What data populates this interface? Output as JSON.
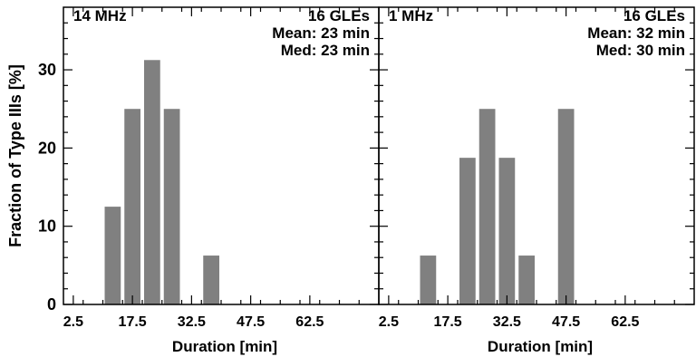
{
  "chart_data": [
    {
      "type": "bar",
      "panel_label": "14 MHz",
      "stats": [
        "16 GLEs",
        "Mean: 23 min",
        "Med: 23 min"
      ],
      "xlabel": "Duration [min]",
      "ylabel": "Fraction of Type IIIs [%]",
      "x_ticks": [
        "2.5",
        "17.5",
        "32.5",
        "47.5",
        "62.5"
      ],
      "y_ticks": [
        "0",
        "10",
        "20",
        "30"
      ],
      "xlim": [
        0,
        80
      ],
      "ylim": [
        0,
        38
      ],
      "bin_width": 5,
      "x": [
        12.5,
        17.5,
        22.5,
        27.5,
        32.5,
        37.5
      ],
      "values": [
        12.5,
        25.0,
        31.25,
        25.0,
        0,
        6.25
      ]
    },
    {
      "type": "bar",
      "panel_label": "1 MHz",
      "stats": [
        "16 GLEs",
        "Mean: 32 min",
        "Med: 30 min"
      ],
      "xlabel": "Duration [min]",
      "x_ticks": [
        "2.5",
        "17.5",
        "32.5",
        "47.5",
        "62.5"
      ],
      "xlim": [
        0,
        80
      ],
      "ylim": [
        0,
        38
      ],
      "bin_width": 5,
      "x": [
        12.5,
        17.5,
        22.5,
        27.5,
        32.5,
        37.5,
        42.5,
        47.5
      ],
      "values": [
        6.25,
        0,
        18.75,
        25.0,
        18.75,
        6.25,
        0,
        25.0
      ]
    }
  ]
}
